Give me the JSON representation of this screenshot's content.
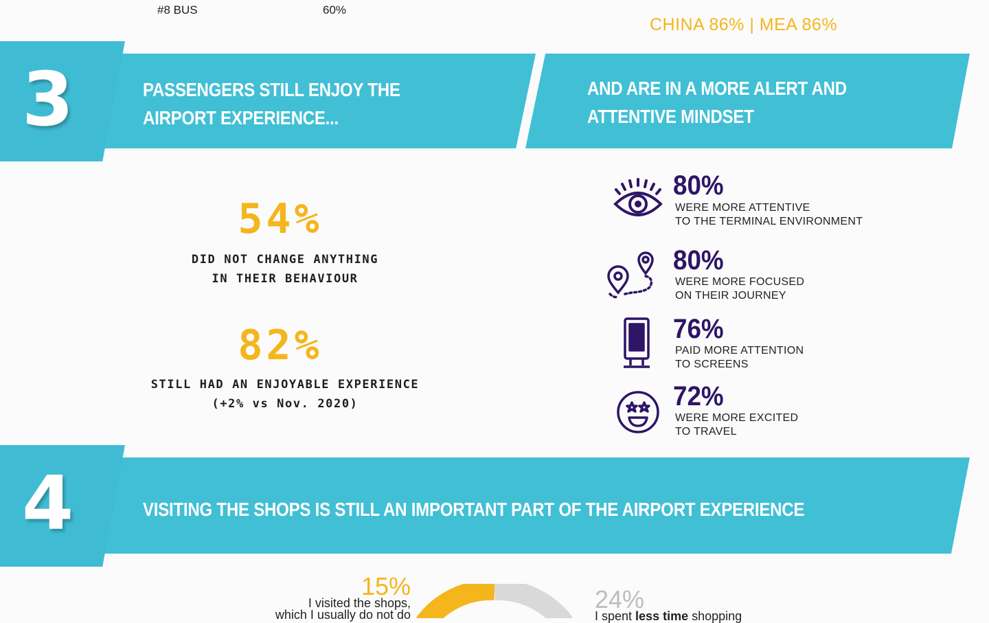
{
  "top_row": {
    "rank_label": "#8 BUS",
    "rank_value": "60%",
    "regions": "CHINA 86% | MEA 86%"
  },
  "section3": {
    "number": "3",
    "left_title": [
      "PASSENGERS STILL ENJOY THE",
      "AIRPORT EXPERIENCE..."
    ],
    "right_title": [
      "AND ARE IN A MORE ALERT AND",
      "ATTENTIVE MINDSET"
    ],
    "left_stats": [
      {
        "pct": "54%",
        "lines": [
          "DID NOT CHANGE ANYTHING",
          "IN THEIR BEHAVIOUR"
        ]
      },
      {
        "pct": "82%",
        "lines": [
          "STILL HAD AN ENJOYABLE EXPERIENCE",
          "(+2% vs Nov. 2020)"
        ]
      }
    ],
    "right_stats": [
      {
        "icon": "eye-icon",
        "pct": "80%",
        "lines": [
          "WERE MORE ATTENTIVE",
          "TO THE TERMINAL ENVIRONMENT"
        ]
      },
      {
        "icon": "route-pin-icon",
        "pct": "80%",
        "lines": [
          "WERE MORE FOCUSED",
          "ON THEIR JOURNEY"
        ]
      },
      {
        "icon": "screen-kiosk-icon",
        "pct": "76%",
        "lines": [
          "PAID MORE ATTENTION",
          "TO SCREENS"
        ]
      },
      {
        "icon": "star-eyes-emoji-icon",
        "pct": "72%",
        "lines": [
          "WERE MORE EXCITED",
          "TO TRAVEL"
        ]
      }
    ]
  },
  "section4": {
    "number": "4",
    "title": "VISITING THE SHOPS IS STILL AN IMPORTANT PART OF THE AIRPORT EXPERIENCE",
    "donut_left": {
      "pct": "15%",
      "lines": [
        "I visited the shops,",
        "which I usually do not do"
      ]
    },
    "donut_right": {
      "pct": "24%",
      "text_pre": "I spent ",
      "text_bold": "less time",
      "text_post": " shopping"
    },
    "colors": {
      "yellow": "#f5b51c",
      "grey": "#d9d9d9"
    }
  },
  "colors": {
    "banner": "#41bfd5",
    "accent_yellow": "#f5b51c",
    "accent_purple": "#2e1566"
  }
}
